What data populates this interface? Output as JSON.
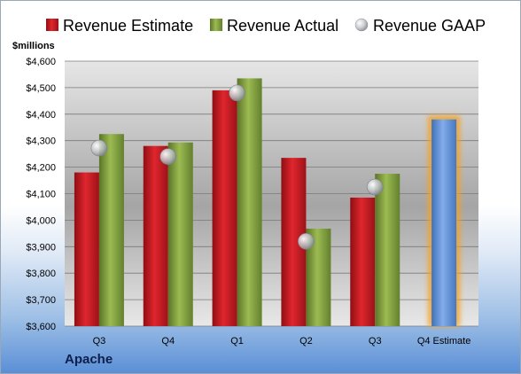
{
  "company": "Apache",
  "chart_data": {
    "type": "bar",
    "ylabel": "$millions",
    "ylim": [
      3600,
      4600
    ],
    "ytick_step": 100,
    "grid": true,
    "legend_position": "top",
    "categories": [
      "Q3",
      "Q4",
      "Q1",
      "Q2",
      "Q3",
      "Q4 Estimate"
    ],
    "series": [
      {
        "name": "Revenue Estimate",
        "type": "bar",
        "color": "#c0141c",
        "values": [
          4180,
          4280,
          4490,
          4235,
          4085,
          4380
        ]
      },
      {
        "name": "Revenue Actual",
        "type": "bar",
        "color": "#7e9b3c",
        "values": [
          4325,
          4293,
          4535,
          3968,
          4175,
          null
        ]
      },
      {
        "name": "Revenue GAAP",
        "type": "marker",
        "color": "#b4b8bd",
        "values": [
          4272,
          4240,
          4480,
          3920,
          4125,
          null
        ]
      }
    ],
    "highlight": {
      "category_index": 5,
      "color": "#5b8fd2",
      "glow": "#f5a020"
    }
  }
}
